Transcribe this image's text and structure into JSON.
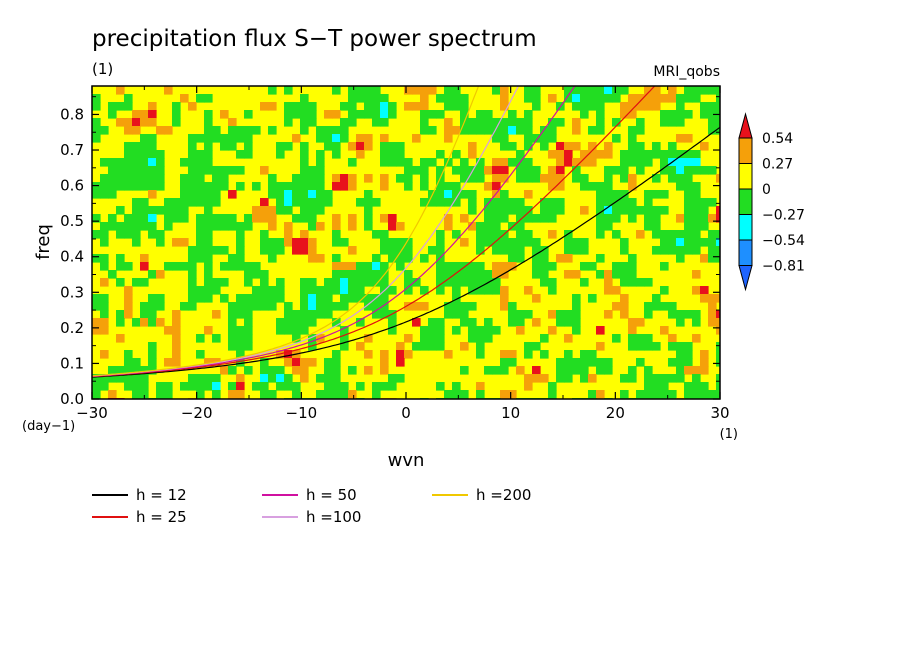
{
  "chart_data": {
    "type": "heatmap",
    "title": "precipitation flux S−T power spectrum",
    "subtitle": "(1)",
    "source_label": "MRI_qobs",
    "xlabel": "wvn",
    "x_unit": "(1)",
    "ylabel": "freq",
    "y_unit": "(day−1)",
    "xlim": [
      -30,
      30
    ],
    "ylim": [
      0,
      0.88
    ],
    "x_ticks": [
      "−30",
      "−20",
      "−10",
      "0",
      "10",
      "20",
      "30"
    ],
    "y_ticks": [
      "0.0",
      "0.1",
      "0.2",
      "0.3",
      "0.4",
      "0.5",
      "0.6",
      "0.7",
      "0.8"
    ],
    "colorbar": {
      "levels": [
        "0.54",
        "0.27",
        "0",
        "−0.27",
        "−0.54",
        "−0.81"
      ],
      "colors": [
        "#e8111c",
        "#f5a00a",
        "#ffff00",
        "#22dd22",
        "#00ffff",
        "#1e8fff",
        "#1e64ff"
      ]
    },
    "dispersion_curves": [
      {
        "name": "h = 12",
        "h": 12,
        "color": "#000000"
      },
      {
        "name": "h = 25",
        "h": 25,
        "color": "#e01010"
      },
      {
        "name": "h = 50",
        "h": 50,
        "color": "#d010a0"
      },
      {
        "name": "h =100",
        "h": 100,
        "color": "#d8a0e0"
      },
      {
        "name": "h =200",
        "h": 200,
        "color": "#f0c800"
      }
    ]
  }
}
